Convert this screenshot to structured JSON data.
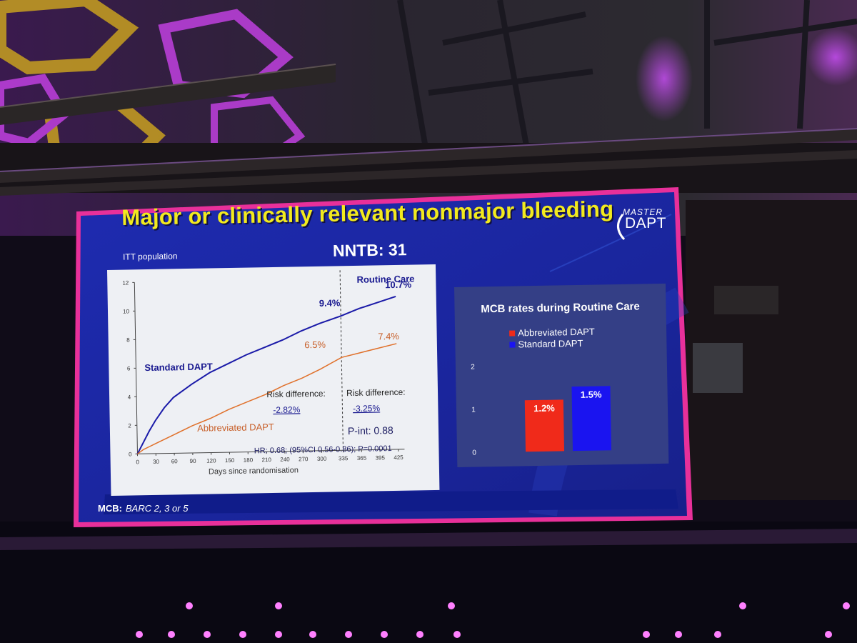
{
  "slide": {
    "title": "Major or clinically relevant nonmajor bleeding",
    "subtitle": "NNTB: 31",
    "population": "ITT population",
    "logo_top": "MASTER",
    "logo_bottom": "DAPT",
    "footnote_label": "MCB:",
    "footnote_text": "BARC 2, 3  or 5"
  },
  "colors": {
    "title": "#f2ea1e",
    "slide_background": "#1c2aa8",
    "slide_border": "#e8309a",
    "standard_dapt": "#1a1aa8",
    "abbreviated_dapt": "#e0702a",
    "bar_abbreviated": "#f02a1a",
    "bar_standard": "#1a14f0"
  },
  "chart_data": [
    {
      "type": "line",
      "xlabel": "Days since randomisation",
      "ylabel": "",
      "x_ticks": [
        0,
        30,
        60,
        90,
        120,
        150,
        180,
        210,
        240,
        270,
        300,
        335,
        365,
        395,
        425
      ],
      "y_ticks": [
        0,
        2,
        4,
        6,
        8,
        10,
        12
      ],
      "xlim": [
        0,
        435
      ],
      "ylim": [
        0,
        12
      ],
      "series": [
        {
          "name": "Standard DAPT",
          "x": [
            0,
            10,
            20,
            30,
            45,
            60,
            90,
            120,
            150,
            180,
            210,
            240,
            270,
            300,
            335,
            365,
            395,
            425
          ],
          "y": [
            0,
            0.8,
            1.6,
            2.3,
            3.2,
            3.9,
            4.8,
            5.6,
            6.2,
            6.8,
            7.3,
            7.8,
            8.4,
            8.9,
            9.4,
            9.9,
            10.3,
            10.7
          ]
        },
        {
          "name": "Abbreviated DAPT",
          "x": [
            0,
            10,
            20,
            30,
            60,
            90,
            120,
            150,
            180,
            210,
            240,
            270,
            300,
            335,
            365,
            395,
            425
          ],
          "y": [
            0,
            0.3,
            0.5,
            0.7,
            1.3,
            1.9,
            2.4,
            3.0,
            3.5,
            4.0,
            4.6,
            5.1,
            5.7,
            6.5,
            6.8,
            7.1,
            7.4
          ]
        }
      ],
      "divider_x": 335,
      "annotations": [
        {
          "text": "Routine Care"
        },
        {
          "text": "9.4%"
        },
        {
          "text": "10.7%"
        },
        {
          "text": "6.5%"
        },
        {
          "text": "7.4%"
        },
        {
          "text": "Standard DAPT"
        },
        {
          "text": "Abbreviated DAPT"
        },
        {
          "text": "Risk difference:"
        },
        {
          "text": "-2.82%"
        },
        {
          "text": "Risk difference:"
        },
        {
          "text": "-3.25%"
        },
        {
          "text": "P-int: 0.88"
        },
        {
          "text": "HR: 0.68; (95%CI 0.56-0.86); P=0.0001"
        }
      ]
    },
    {
      "type": "bar",
      "title": "MCB rates during Routine Care",
      "categories": [
        "Abbreviated DAPT",
        "Standard DAPT"
      ],
      "values": [
        1.2,
        1.5
      ],
      "value_labels": [
        "1.2%",
        "1.5%"
      ],
      "y_ticks": [
        0,
        1,
        2
      ],
      "ylim": [
        0,
        2.2
      ],
      "legend": "top-left"
    }
  ]
}
